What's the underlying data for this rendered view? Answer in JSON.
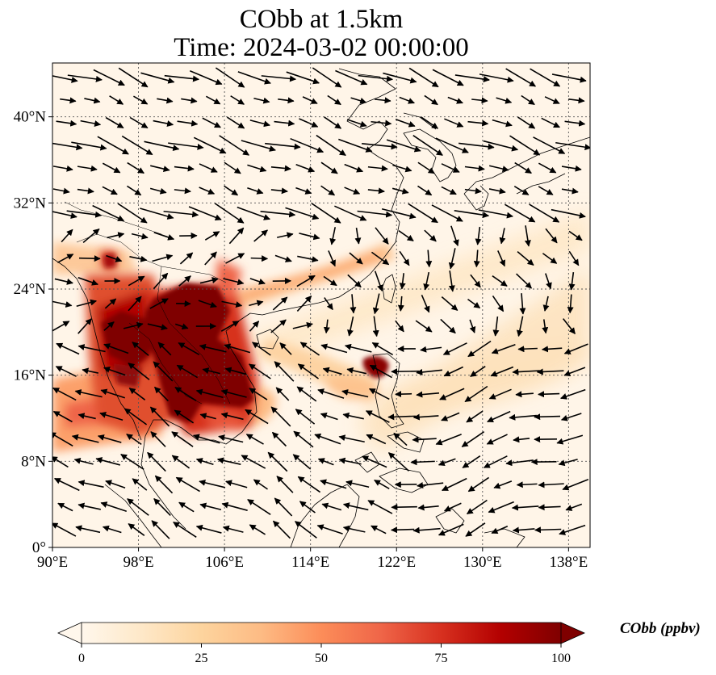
{
  "title": {
    "line1": "CObb at 1.5km",
    "line2": "Time: 2024-03-02 00:00:00"
  },
  "map": {
    "projection": "PlateCarree",
    "lon_range": [
      90,
      140
    ],
    "lat_range": [
      0,
      45
    ],
    "lon_ticks": [
      "90°E",
      "98°E",
      "106°E",
      "114°E",
      "122°E",
      "130°E",
      "138°E"
    ],
    "lon_tick_values": [
      90,
      98,
      106,
      114,
      122,
      130,
      138
    ],
    "lat_ticks": [
      "0°",
      "8°N",
      "16°N",
      "24°N",
      "32°N",
      "40°N"
    ],
    "lat_tick_values": [
      0,
      8,
      16,
      24,
      32,
      40
    ],
    "gridlines": "dotted",
    "coastlines": true,
    "variable": "CObb",
    "level": "1.5km",
    "wind_vectors": true,
    "high_regions": [
      "Indochina (Myanmar, Laos, Thailand, Vietnam)",
      "northern Luzon"
    ],
    "plume_direction": "northeast across South China Sea toward Taiwan and western Pacific"
  },
  "colorbar": {
    "label": "CObb (ppbv)",
    "min": 0,
    "max": 100,
    "ticks": [
      "0",
      "25",
      "50",
      "75",
      "100"
    ],
    "tick_values": [
      0,
      25,
      50,
      75,
      100
    ],
    "extend": "both",
    "colormap": "OrRd",
    "colors": [
      "#fff7ec",
      "#fee8c8",
      "#fdd49e",
      "#fdbb84",
      "#fc8d59",
      "#ef6548",
      "#d7301f",
      "#b30000",
      "#7f0000"
    ]
  }
}
